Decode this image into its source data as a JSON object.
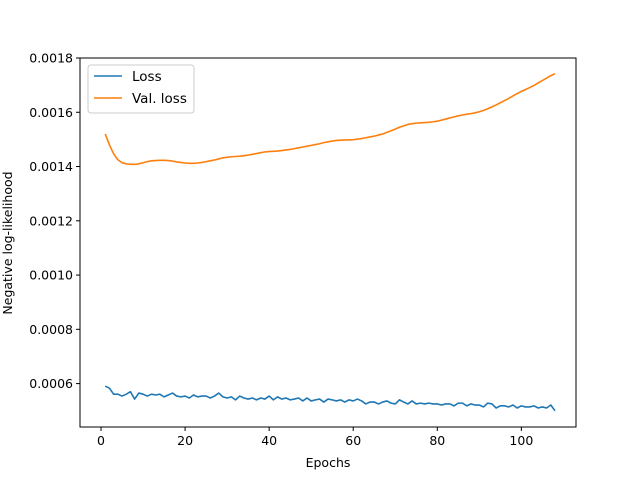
{
  "chart_data": {
    "type": "line",
    "title": "",
    "xlabel": "Epochs",
    "ylabel": "Negative log-likelihood",
    "xlim": [
      -5,
      113
    ],
    "ylim": [
      0.00044,
      0.0018
    ],
    "xticks": [
      0,
      20,
      40,
      60,
      80,
      100
    ],
    "xtick_labels": [
      "0",
      "20",
      "40",
      "60",
      "80",
      "100"
    ],
    "yticks": [
      0.0006,
      0.0008,
      0.001,
      0.0012,
      0.0014,
      0.0016,
      0.0018
    ],
    "ytick_labels": [
      "0.0006",
      "0.0008",
      "0.0010",
      "0.0012",
      "0.0014",
      "0.0016",
      "0.0018"
    ],
    "grid": false,
    "legend_position": "top-left",
    "series": [
      {
        "name": "Loss",
        "color": "#1f77b4",
        "points": [
          [
            1,
            0.000591
          ],
          [
            2,
            0.000583
          ],
          [
            3,
            0.000561
          ],
          [
            4,
            0.000561
          ],
          [
            5,
            0.000554
          ],
          [
            6,
            0.000561
          ],
          [
            7,
            0.00057
          ],
          [
            8,
            0.000543
          ],
          [
            9,
            0.000565
          ],
          [
            10,
            0.000561
          ],
          [
            11,
            0.000554
          ],
          [
            12,
            0.000561
          ],
          [
            13,
            0.000558
          ],
          [
            14,
            0.000561
          ],
          [
            15,
            0.000551
          ],
          [
            16,
            0.000558
          ],
          [
            17,
            0.000565
          ],
          [
            18,
            0.000554
          ],
          [
            19,
            0.000551
          ],
          [
            20,
            0.000554
          ],
          [
            21,
            0.000547
          ],
          [
            22,
            0.000558
          ],
          [
            23,
            0.000551
          ],
          [
            24,
            0.000554
          ],
          [
            25,
            0.000554
          ],
          [
            26,
            0.000547
          ],
          [
            27,
            0.000554
          ],
          [
            28,
            0.000565
          ],
          [
            29,
            0.000551
          ],
          [
            30,
            0.000547
          ],
          [
            31,
            0.000551
          ],
          [
            32,
            0.00054
          ],
          [
            33,
            0.000554
          ],
          [
            34,
            0.000547
          ],
          [
            35,
            0.000543
          ],
          [
            36,
            0.000547
          ],
          [
            37,
            0.00054
          ],
          [
            38,
            0.000547
          ],
          [
            39,
            0.000543
          ],
          [
            40,
            0.000554
          ],
          [
            41,
            0.00054
          ],
          [
            42,
            0.000551
          ],
          [
            43,
            0.000543
          ],
          [
            44,
            0.000547
          ],
          [
            45,
            0.00054
          ],
          [
            46,
            0.000543
          ],
          [
            47,
            0.000547
          ],
          [
            48,
            0.000536
          ],
          [
            49,
            0.000547
          ],
          [
            50,
            0.000536
          ],
          [
            51,
            0.00054
          ],
          [
            52,
            0.000543
          ],
          [
            53,
            0.000532
          ],
          [
            54,
            0.000543
          ],
          [
            55,
            0.00054
          ],
          [
            56,
            0.000536
          ],
          [
            57,
            0.00054
          ],
          [
            58,
            0.000532
          ],
          [
            59,
            0.00054
          ],
          [
            60,
            0.000536
          ],
          [
            61,
            0.000543
          ],
          [
            62,
            0.000536
          ],
          [
            63,
            0.000525
          ],
          [
            64,
            0.000532
          ],
          [
            65,
            0.000532
          ],
          [
            66,
            0.000525
          ],
          [
            67,
            0.000532
          ],
          [
            68,
            0.000536
          ],
          [
            69,
            0.000528
          ],
          [
            70,
            0.000525
          ],
          [
            71,
            0.00054
          ],
          [
            72,
            0.000532
          ],
          [
            73,
            0.000525
          ],
          [
            74,
            0.000536
          ],
          [
            75,
            0.000525
          ],
          [
            76,
            0.000528
          ],
          [
            77,
            0.000525
          ],
          [
            78,
            0.000528
          ],
          [
            79,
            0.000525
          ],
          [
            80,
            0.000525
          ],
          [
            81,
            0.000521
          ],
          [
            82,
            0.000525
          ],
          [
            83,
            0.000525
          ],
          [
            84,
            0.000518
          ],
          [
            85,
            0.000528
          ],
          [
            86,
            0.000528
          ],
          [
            87,
            0.000518
          ],
          [
            88,
            0.000525
          ],
          [
            89,
            0.000521
          ],
          [
            90,
            0.000521
          ],
          [
            91,
            0.000514
          ],
          [
            92,
            0.000528
          ],
          [
            93,
            0.000525
          ],
          [
            94,
            0.00051
          ],
          [
            95,
            0.000518
          ],
          [
            96,
            0.000518
          ],
          [
            97,
            0.000514
          ],
          [
            98,
            0.000521
          ],
          [
            99,
            0.00051
          ],
          [
            100,
            0.000518
          ],
          [
            101,
            0.000514
          ],
          [
            102,
            0.000514
          ],
          [
            103,
            0.000518
          ],
          [
            104,
            0.00051
          ],
          [
            105,
            0.000514
          ],
          [
            106,
            0.00051
          ],
          [
            107,
            0.000521
          ],
          [
            108,
            0.0005
          ]
        ]
      },
      {
        "name": "Val. loss",
        "color": "#ff7f0e",
        "points": [
          [
            1,
            0.00152
          ],
          [
            2,
            0.00148
          ],
          [
            3,
            0.001447
          ],
          [
            4,
            0.001425
          ],
          [
            5,
            0.001414
          ],
          [
            6,
            0.00141
          ],
          [
            7,
            0.001408
          ],
          [
            8,
            0.001408
          ],
          [
            9,
            0.00141
          ],
          [
            10,
            0.001414
          ],
          [
            11,
            0.001418
          ],
          [
            12,
            0.001421
          ],
          [
            13,
            0.001422
          ],
          [
            14,
            0.001423
          ],
          [
            15,
            0.001423
          ],
          [
            16,
            0.001422
          ],
          [
            17,
            0.00142
          ],
          [
            18,
            0.001417
          ],
          [
            19,
            0.001415
          ],
          [
            20,
            0.001413
          ],
          [
            21,
            0.001412
          ],
          [
            22,
            0.001412
          ],
          [
            23,
            0.001413
          ],
          [
            24,
            0.001415
          ],
          [
            25,
            0.001418
          ],
          [
            26,
            0.001421
          ],
          [
            27,
            0.001424
          ],
          [
            28,
            0.001428
          ],
          [
            29,
            0.001432
          ],
          [
            30,
            0.001434
          ],
          [
            31,
            0.001436
          ],
          [
            32,
            0.001437
          ],
          [
            33,
            0.001438
          ],
          [
            34,
            0.00144
          ],
          [
            35,
            0.001442
          ],
          [
            36,
            0.001445
          ],
          [
            37,
            0.001448
          ],
          [
            38,
            0.001451
          ],
          [
            39,
            0.001454
          ],
          [
            40,
            0.001455
          ],
          [
            41,
            0.001456
          ],
          [
            42,
            0.001457
          ],
          [
            43,
            0.001459
          ],
          [
            44,
            0.001461
          ],
          [
            45,
            0.001463
          ],
          [
            46,
            0.001466
          ],
          [
            47,
            0.001469
          ],
          [
            48,
            0.001472
          ],
          [
            49,
            0.001475
          ],
          [
            50,
            0.001478
          ],
          [
            51,
            0.001481
          ],
          [
            52,
            0.001484
          ],
          [
            53,
            0.001488
          ],
          [
            54,
            0.001491
          ],
          [
            55,
            0.001494
          ],
          [
            56,
            0.001496
          ],
          [
            57,
            0.001497
          ],
          [
            58,
            0.001498
          ],
          [
            59,
            0.001498
          ],
          [
            60,
            0.001499
          ],
          [
            61,
            0.001501
          ],
          [
            62,
            0.001503
          ],
          [
            63,
            0.001506
          ],
          [
            64,
            0.001509
          ],
          [
            65,
            0.001512
          ],
          [
            66,
            0.001516
          ],
          [
            67,
            0.00152
          ],
          [
            68,
            0.001526
          ],
          [
            69,
            0.001532
          ],
          [
            70,
            0.001538
          ],
          [
            71,
            0.001545
          ],
          [
            72,
            0.00155
          ],
          [
            73,
            0.001555
          ],
          [
            74,
            0.001558
          ],
          [
            75,
            0.00156
          ],
          [
            76,
            0.001561
          ],
          [
            77,
            0.001562
          ],
          [
            78,
            0.001563
          ],
          [
            79,
            0.001565
          ],
          [
            80,
            0.001567
          ],
          [
            81,
            0.001571
          ],
          [
            82,
            0.001575
          ],
          [
            83,
            0.001579
          ],
          [
            84,
            0.001583
          ],
          [
            85,
            0.001587
          ],
          [
            86,
            0.00159
          ],
          [
            87,
            0.001593
          ],
          [
            88,
            0.001595
          ],
          [
            89,
            0.001598
          ],
          [
            90,
            0.001602
          ],
          [
            91,
            0.001607
          ],
          [
            92,
            0.001613
          ],
          [
            93,
            0.00162
          ],
          [
            94,
            0.001627
          ],
          [
            95,
            0.001635
          ],
          [
            96,
            0.001643
          ],
          [
            97,
            0.001651
          ],
          [
            98,
            0.00166
          ],
          [
            99,
            0.001669
          ],
          [
            100,
            0.001677
          ],
          [
            101,
            0.001684
          ],
          [
            102,
            0.001691
          ],
          [
            103,
            0.001699
          ],
          [
            104,
            0.001708
          ],
          [
            105,
            0.001717
          ],
          [
            106,
            0.001726
          ],
          [
            107,
            0.001735
          ],
          [
            108,
            0.001742
          ]
        ]
      }
    ]
  }
}
